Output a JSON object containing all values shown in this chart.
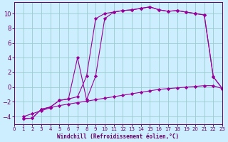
{
  "xlabel": "Windchill (Refroidissement éolien,°C)",
  "background_color": "#cceeff",
  "grid_color": "#99cccc",
  "line_color": "#990099",
  "xlim": [
    0,
    23
  ],
  "ylim": [
    -5,
    11.5
  ],
  "xticks": [
    0,
    1,
    2,
    3,
    4,
    5,
    6,
    7,
    8,
    9,
    10,
    11,
    12,
    13,
    14,
    15,
    16,
    17,
    18,
    19,
    20,
    21,
    22,
    23
  ],
  "yticks": [
    -4,
    -2,
    0,
    2,
    4,
    6,
    8,
    10
  ],
  "line1_x": [
    1,
    2,
    3,
    4,
    5,
    6,
    7,
    8,
    9,
    10,
    11,
    12,
    13,
    14,
    15,
    16,
    17,
    18,
    19,
    20,
    21,
    22,
    23
  ],
  "line1_y": [
    -4.0,
    -3.6,
    -3.2,
    -2.8,
    -2.5,
    -2.3,
    -2.1,
    -1.9,
    -1.7,
    -1.5,
    -1.3,
    -1.1,
    -0.9,
    -0.7,
    -0.5,
    -0.3,
    -0.2,
    -0.1,
    0.0,
    0.1,
    0.2,
    0.2,
    -0.2
  ],
  "line2_x": [
    1,
    2,
    3,
    4,
    5,
    6,
    7,
    8,
    9,
    10,
    11,
    12,
    13,
    14,
    15,
    16,
    17,
    18,
    19,
    20,
    21,
    22,
    23
  ],
  "line2_y": [
    -4.3,
    -4.2,
    -3.0,
    -2.7,
    -1.8,
    -1.6,
    -1.3,
    1.5,
    9.3,
    10.0,
    10.2,
    10.4,
    10.5,
    10.7,
    10.9,
    10.5,
    10.3,
    10.4,
    10.2,
    10.0,
    9.8,
    1.4,
    -0.2
  ],
  "line3_x": [
    1,
    2,
    3,
    4,
    5,
    6,
    7,
    8,
    9,
    10,
    11,
    12,
    13,
    14,
    15,
    16,
    17,
    18,
    19,
    20,
    21,
    22,
    23
  ],
  "line3_y": [
    -4.3,
    -4.2,
    -3.0,
    -2.7,
    -1.8,
    -1.6,
    4.0,
    -1.7,
    1.5,
    9.3,
    10.2,
    10.4,
    10.5,
    10.7,
    10.9,
    10.5,
    10.3,
    10.4,
    10.2,
    10.0,
    9.8,
    1.4,
    -0.2
  ]
}
